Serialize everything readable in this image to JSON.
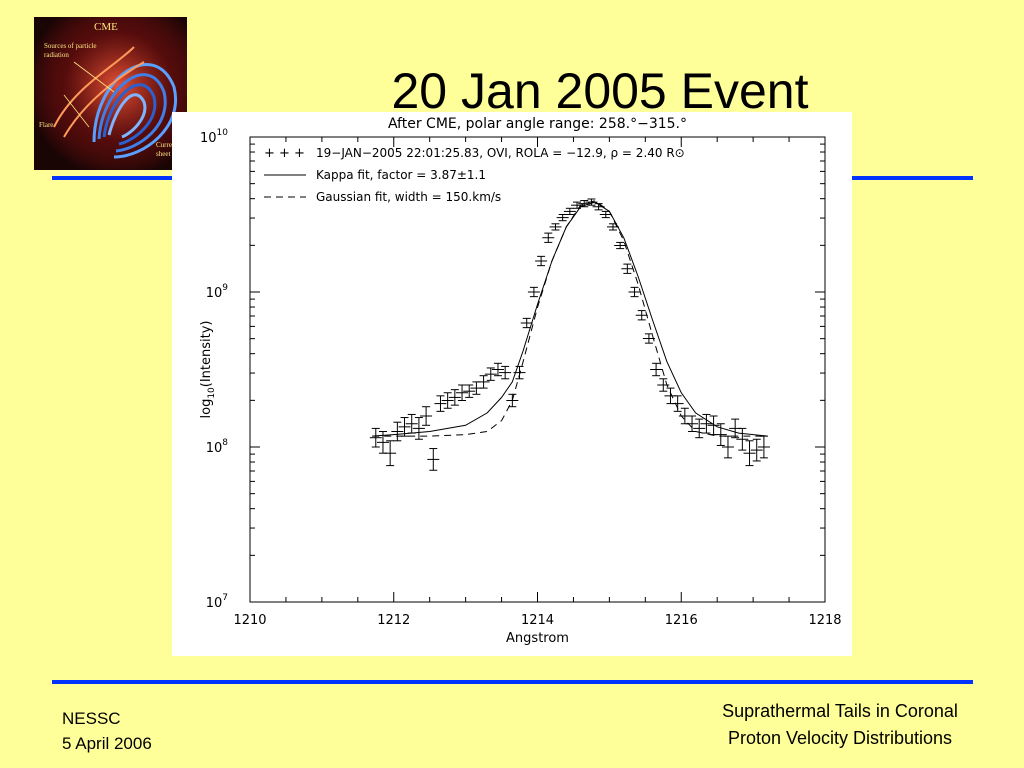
{
  "slide": {
    "title": "20 Jan 2005 Event",
    "footer_left_line1": "NESSC",
    "footer_left_line2": "5 April 2006",
    "footer_right_line1": "Suprathermal Tails in Coronal",
    "footer_right_line2": "Proton Velocity Distributions"
  },
  "logo": {
    "title": "CME",
    "label_sources": "Sources of particle radiation",
    "label_flare": "Flare",
    "label_current": "Curre",
    "label_sheet": "sheet"
  },
  "colors": {
    "background": "#ffff99",
    "rule": "#0033ff",
    "text": "#000000"
  },
  "chart_data": {
    "type": "scatter",
    "title": "After CME, polar angle range: 258.°−315.°",
    "xlabel": "Angstrom",
    "ylabel": "log10(Intensity)",
    "xlim": [
      1210,
      1218
    ],
    "ylim_log10": [
      7,
      10
    ],
    "log_y": true,
    "x_ticks": [
      "1210",
      "1212",
      "1214",
      "1216",
      "1218"
    ],
    "y_ticks": [
      "10^7",
      "10^8",
      "10^9",
      "10^10"
    ],
    "legend_position": "top-left",
    "legend": [
      {
        "symbol": "+ + +",
        "label": "19−JAN−2005 22:01:25.83, OVI, ROLA = −12.9, ρ = 2.40 R⊙"
      },
      {
        "symbol": "solid",
        "label": "Kappa fit, factor = 3.87±1.1"
      },
      {
        "symbol": "dashed",
        "label": "Gaussian fit, width = 150.km/s"
      }
    ],
    "series": [
      {
        "name": "19−JAN−2005 22:01:25.83, OVI, ROLA = −12.9, ρ = 2.40 R⊙",
        "style": "points-with-errorbars",
        "x": [
          1211.75,
          1211.85,
          1211.95,
          1212.05,
          1212.15,
          1212.25,
          1212.35,
          1212.45,
          1212.55,
          1212.65,
          1212.75,
          1212.85,
          1212.95,
          1213.05,
          1213.15,
          1213.25,
          1213.35,
          1213.45,
          1213.55,
          1213.65,
          1213.75,
          1213.85,
          1213.95,
          1214.05,
          1214.15,
          1214.25,
          1214.35,
          1214.45,
          1214.55,
          1214.65,
          1214.75,
          1214.85,
          1214.95,
          1215.05,
          1215.15,
          1215.25,
          1215.35,
          1215.45,
          1215.55,
          1215.65,
          1215.75,
          1215.85,
          1215.95,
          1216.05,
          1216.15,
          1216.25,
          1216.35,
          1216.45,
          1216.55,
          1216.65,
          1216.75,
          1216.85,
          1216.95,
          1217.05,
          1217.15
        ],
        "log10_y": [
          8.06,
          8.03,
          7.96,
          8.1,
          8.13,
          8.15,
          8.12,
          8.2,
          7.92,
          8.28,
          8.3,
          8.32,
          8.35,
          8.36,
          8.38,
          8.42,
          8.47,
          8.5,
          8.48,
          8.3,
          8.48,
          8.8,
          9.0,
          9.2,
          9.35,
          9.42,
          9.48,
          9.52,
          9.56,
          9.57,
          9.58,
          9.55,
          9.5,
          9.42,
          9.3,
          9.15,
          9.0,
          8.85,
          8.7,
          8.5,
          8.4,
          8.33,
          8.28,
          8.2,
          8.15,
          8.12,
          8.15,
          8.14,
          8.08,
          8.0,
          8.12,
          8.05,
          7.96,
          7.98,
          8.0
        ],
        "log10_err": [
          0.06,
          0.07,
          0.08,
          0.06,
          0.06,
          0.06,
          0.07,
          0.06,
          0.07,
          0.05,
          0.05,
          0.05,
          0.05,
          0.04,
          0.04,
          0.04,
          0.04,
          0.04,
          0.04,
          0.04,
          0.04,
          0.03,
          0.03,
          0.03,
          0.03,
          0.02,
          0.02,
          0.02,
          0.02,
          0.02,
          0.02,
          0.02,
          0.02,
          0.02,
          0.02,
          0.03,
          0.03,
          0.03,
          0.03,
          0.04,
          0.04,
          0.05,
          0.05,
          0.05,
          0.05,
          0.06,
          0.06,
          0.06,
          0.07,
          0.07,
          0.06,
          0.07,
          0.08,
          0.07,
          0.07
        ]
      },
      {
        "name": "Kappa fit, factor = 3.87±1.1",
        "style": "solid",
        "x": [
          1211.7,
          1212.0,
          1212.5,
          1213.0,
          1213.3,
          1213.5,
          1213.65,
          1213.8,
          1214.0,
          1214.2,
          1214.4,
          1214.6,
          1214.8,
          1215.0,
          1215.2,
          1215.4,
          1215.6,
          1215.8,
          1216.0,
          1216.2,
          1216.5,
          1216.8,
          1217.2
        ],
        "log10_y": [
          8.07,
          8.08,
          8.1,
          8.14,
          8.22,
          8.32,
          8.42,
          8.62,
          8.92,
          9.2,
          9.42,
          9.55,
          9.58,
          9.52,
          9.35,
          9.1,
          8.82,
          8.55,
          8.35,
          8.22,
          8.13,
          8.09,
          8.07
        ]
      },
      {
        "name": "Gaussian fit, width = 150.km/s",
        "style": "dashed",
        "x": [
          1211.7,
          1212.5,
          1213.0,
          1213.3,
          1213.5,
          1213.65,
          1213.8,
          1214.0,
          1214.2,
          1214.4,
          1214.6,
          1214.8,
          1215.0,
          1215.2,
          1215.4,
          1215.6,
          1215.8,
          1216.0,
          1216.2,
          1216.5,
          1217.2
        ],
        "log10_y": [
          8.07,
          8.07,
          8.08,
          8.1,
          8.17,
          8.3,
          8.55,
          8.9,
          9.2,
          9.42,
          9.56,
          9.59,
          9.52,
          9.33,
          9.05,
          8.72,
          8.4,
          8.2,
          8.1,
          8.07,
          8.07
        ]
      }
    ]
  }
}
